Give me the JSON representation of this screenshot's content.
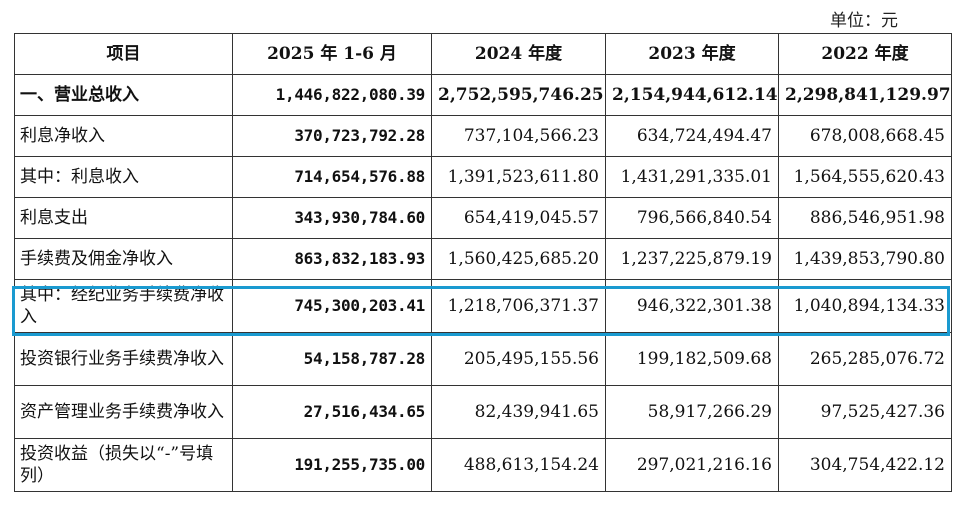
{
  "unit_label": "单位：元",
  "header": [
    "项目",
    "2025 年 1-6 月",
    "2024 年度",
    "2023 年度",
    "2022 年度"
  ],
  "rows": [
    {
      "label": "一、营业总收入",
      "values": [
        "1,446,822,080.39",
        "2,752,595,746.25",
        "2,154,944,612.14",
        "2,298,841,129.97"
      ]
    },
    {
      "label": "利息净收入",
      "values": [
        "370,723,792.28",
        "737,104,566.23",
        "634,724,494.47",
        "678,008,668.45"
      ]
    },
    {
      "label": "其中：利息收入",
      "values": [
        "714,654,576.88",
        "1,391,523,611.80",
        "1,431,291,335.01",
        "1,564,555,620.43"
      ]
    },
    {
      "label": "利息支出",
      "values": [
        "343,930,784.60",
        "654,419,045.57",
        "796,566,840.54",
        "886,546,951.98"
      ]
    },
    {
      "label": "手续费及佣金净收入",
      "values": [
        "863,832,183.93",
        "1,560,425,685.20",
        "1,237,225,879.19",
        "1,439,853,790.80"
      ]
    },
    {
      "label": "其中：经纪业务手续费净收入",
      "values": [
        "745,300,203.41",
        "1,218,706,371.37",
        "946,322,301.38",
        "1,040,894,134.33"
      ]
    },
    {
      "label": "投资银行业务手续费净收入",
      "values": [
        "54,158,787.28",
        "205,495,155.56",
        "199,182,509.68",
        "265,285,076.72"
      ]
    },
    {
      "label": "资产管理业务手续费净收入",
      "values": [
        "27,516,434.65",
        "82,439,941.65",
        "58,917,266.29",
        "97,525,427.36"
      ]
    },
    {
      "label": "投资收益（损失以“-”号填列）",
      "values": [
        "191,255,735.00",
        "488,613,154.24",
        "297,021,216.16",
        "304,754,422.12"
      ]
    }
  ],
  "highlight_color": "#1a9ad0"
}
